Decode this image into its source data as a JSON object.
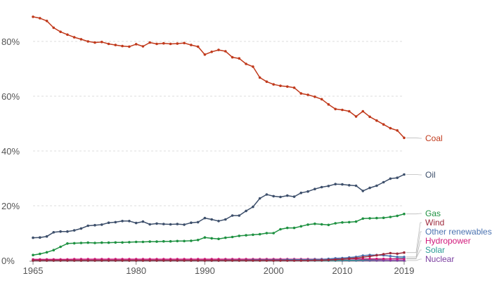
{
  "chart_data": {
    "type": "line",
    "title": "",
    "xlabel": "",
    "ylabel": "",
    "xlim": [
      1965,
      2019
    ],
    "ylim": [
      0,
      90
    ],
    "x_ticks": [
      1965,
      1980,
      1990,
      2000,
      2010,
      2019
    ],
    "y_ticks": [
      0,
      20,
      40,
      60,
      80
    ],
    "y_tick_format": "percent",
    "grid": true,
    "legend": "right-inline",
    "x": [
      1965,
      1966,
      1967,
      1968,
      1969,
      1970,
      1971,
      1972,
      1973,
      1974,
      1975,
      1976,
      1977,
      1978,
      1979,
      1980,
      1981,
      1982,
      1983,
      1984,
      1985,
      1986,
      1987,
      1988,
      1989,
      1990,
      1991,
      1992,
      1993,
      1994,
      1995,
      1996,
      1997,
      1998,
      1999,
      2000,
      2001,
      2002,
      2003,
      2004,
      2005,
      2006,
      2007,
      2008,
      2009,
      2010,
      2011,
      2012,
      2013,
      2014,
      2015,
      2016,
      2017,
      2018,
      2019
    ],
    "series": [
      {
        "name": "Coal",
        "color": "#c0391b",
        "values": [
          89,
          88.5,
          87.5,
          85,
          83.5,
          82.5,
          81.5,
          80.8,
          80,
          79.6,
          79.8,
          79.1,
          78.7,
          78.3,
          78.1,
          79,
          78.2,
          79.6,
          79.1,
          79.3,
          79.1,
          79.2,
          79.4,
          78.7,
          78.1,
          75.2,
          76.2,
          76.9,
          76.4,
          74.2,
          73.8,
          71.8,
          70.8,
          66.8,
          65.3,
          64.3,
          63.8,
          63.5,
          63.1,
          61,
          60.5,
          59.8,
          58.9,
          57,
          55.3,
          55,
          54.5,
          52.6,
          54.5,
          52.5,
          51.1,
          49.7,
          48.3,
          47.5,
          44.8
        ]
      },
      {
        "name": "Oil",
        "color": "#3d4f6b",
        "values": [
          8.3,
          8.4,
          8.8,
          10.3,
          10.6,
          10.6,
          11,
          11.7,
          12.7,
          12.9,
          13.1,
          13.8,
          14,
          14.4,
          14.4,
          13.7,
          14.2,
          13.2,
          13.5,
          13.3,
          13.2,
          13.3,
          13.1,
          13.8,
          14,
          15.5,
          15,
          14.4,
          15,
          16.4,
          16.4,
          18.1,
          19.6,
          22.7,
          24.1,
          23.5,
          23.2,
          23.7,
          23.3,
          24.7,
          25.2,
          26.1,
          26.8,
          27.2,
          27.9,
          27.8,
          27.5,
          27.3,
          25.4,
          26.5,
          27.3,
          28.6,
          29.9,
          30.2,
          31.4
        ]
      },
      {
        "name": "Gas",
        "color": "#1e9141",
        "values": [
          2,
          2.4,
          3,
          3.8,
          5,
          6.2,
          6.3,
          6.4,
          6.5,
          6.4,
          6.5,
          6.5,
          6.6,
          6.6,
          6.7,
          6.8,
          6.8,
          6.9,
          6.9,
          7,
          7,
          7.1,
          7.1,
          7.2,
          7.5,
          8.4,
          8.1,
          7.9,
          8.3,
          8.6,
          9,
          9.2,
          9.4,
          9.6,
          10,
          10,
          11.4,
          11.9,
          11.9,
          12.5,
          13.1,
          13.4,
          13.2,
          13,
          13.6,
          13.9,
          14,
          14.2,
          15.3,
          15.4,
          15.5,
          15.6,
          15.9,
          16.3,
          17
        ]
      },
      {
        "name": "Wind",
        "color": "#9e2a3c",
        "values": [
          0,
          0,
          0,
          0,
          0,
          0,
          0,
          0,
          0,
          0,
          0,
          0,
          0,
          0,
          0,
          0,
          0,
          0,
          0,
          0,
          0,
          0,
          0,
          0,
          0,
          0,
          0,
          0,
          0,
          0,
          0,
          0,
          0,
          0,
          0,
          0,
          0,
          0,
          0,
          0,
          0,
          0.1,
          0.1,
          0.2,
          0.3,
          0.5,
          0.7,
          0.9,
          1.2,
          1.5,
          1.9,
          2.3,
          2.7,
          2.5,
          2.9
        ]
      },
      {
        "name": "Other renewables",
        "color": "#4a72b0",
        "values": [
          0,
          0,
          0,
          0,
          0,
          0,
          0,
          0,
          0,
          0,
          0,
          0,
          0,
          0,
          0,
          0,
          0,
          0,
          0,
          0,
          0,
          0,
          0,
          0,
          0,
          0,
          0,
          0,
          0.1,
          0.1,
          0.1,
          0.1,
          0.2,
          0.2,
          0.2,
          0.2,
          0.2,
          0.3,
          0.3,
          0.3,
          0.3,
          0.4,
          0.4,
          0.6,
          0.8,
          0.9,
          1.1,
          1.3,
          1.8,
          2,
          2,
          1.9,
          1.6,
          1.3,
          1.3
        ]
      },
      {
        "name": "Hydropower",
        "color": "#d1187a",
        "values": [
          0.4,
          0.4,
          0.4,
          0.4,
          0.4,
          0.4,
          0.5,
          0.5,
          0.5,
          0.5,
          0.5,
          0.5,
          0.5,
          0.5,
          0.5,
          0.5,
          0.5,
          0.5,
          0.5,
          0.5,
          0.5,
          0.5,
          0.5,
          0.5,
          0.5,
          0.5,
          0.5,
          0.5,
          0.5,
          0.5,
          0.5,
          0.5,
          0.5,
          0.5,
          0.5,
          0.5,
          0.5,
          0.5,
          0.5,
          0.5,
          0.5,
          0.5,
          0.5,
          0.5,
          0.5,
          0.5,
          0.6,
          0.6,
          0.6,
          0.6,
          0.6,
          0.6,
          0.6,
          0.6,
          0.6
        ]
      },
      {
        "name": "Solar",
        "color": "#2a9c96",
        "values": [
          0,
          0,
          0,
          0,
          0,
          0,
          0,
          0,
          0,
          0,
          0,
          0,
          0,
          0,
          0,
          0,
          0,
          0,
          0,
          0,
          0,
          0,
          0,
          0,
          0,
          0,
          0,
          0,
          0,
          0,
          0,
          0,
          0,
          0,
          0,
          0,
          0,
          0,
          0,
          0,
          0,
          0,
          0,
          0,
          0,
          0.1,
          0.1,
          0.1,
          0.2,
          0.3,
          0.4,
          0.5,
          0.6,
          0.7,
          0.8
        ]
      },
      {
        "name": "Nuclear",
        "color": "#7b3fa0",
        "values": [
          0,
          0,
          0,
          0,
          0,
          0,
          0,
          0,
          0,
          0,
          0,
          0,
          0,
          0,
          0,
          0,
          0,
          0,
          0,
          0,
          0,
          0,
          0,
          0,
          0,
          0,
          0,
          0,
          0,
          0,
          0,
          0,
          0,
          0,
          0,
          0,
          0,
          0,
          0,
          0,
          0,
          0,
          0,
          0,
          0,
          0,
          0,
          0,
          0,
          0,
          0,
          0,
          0,
          0,
          0
        ]
      }
    ]
  }
}
